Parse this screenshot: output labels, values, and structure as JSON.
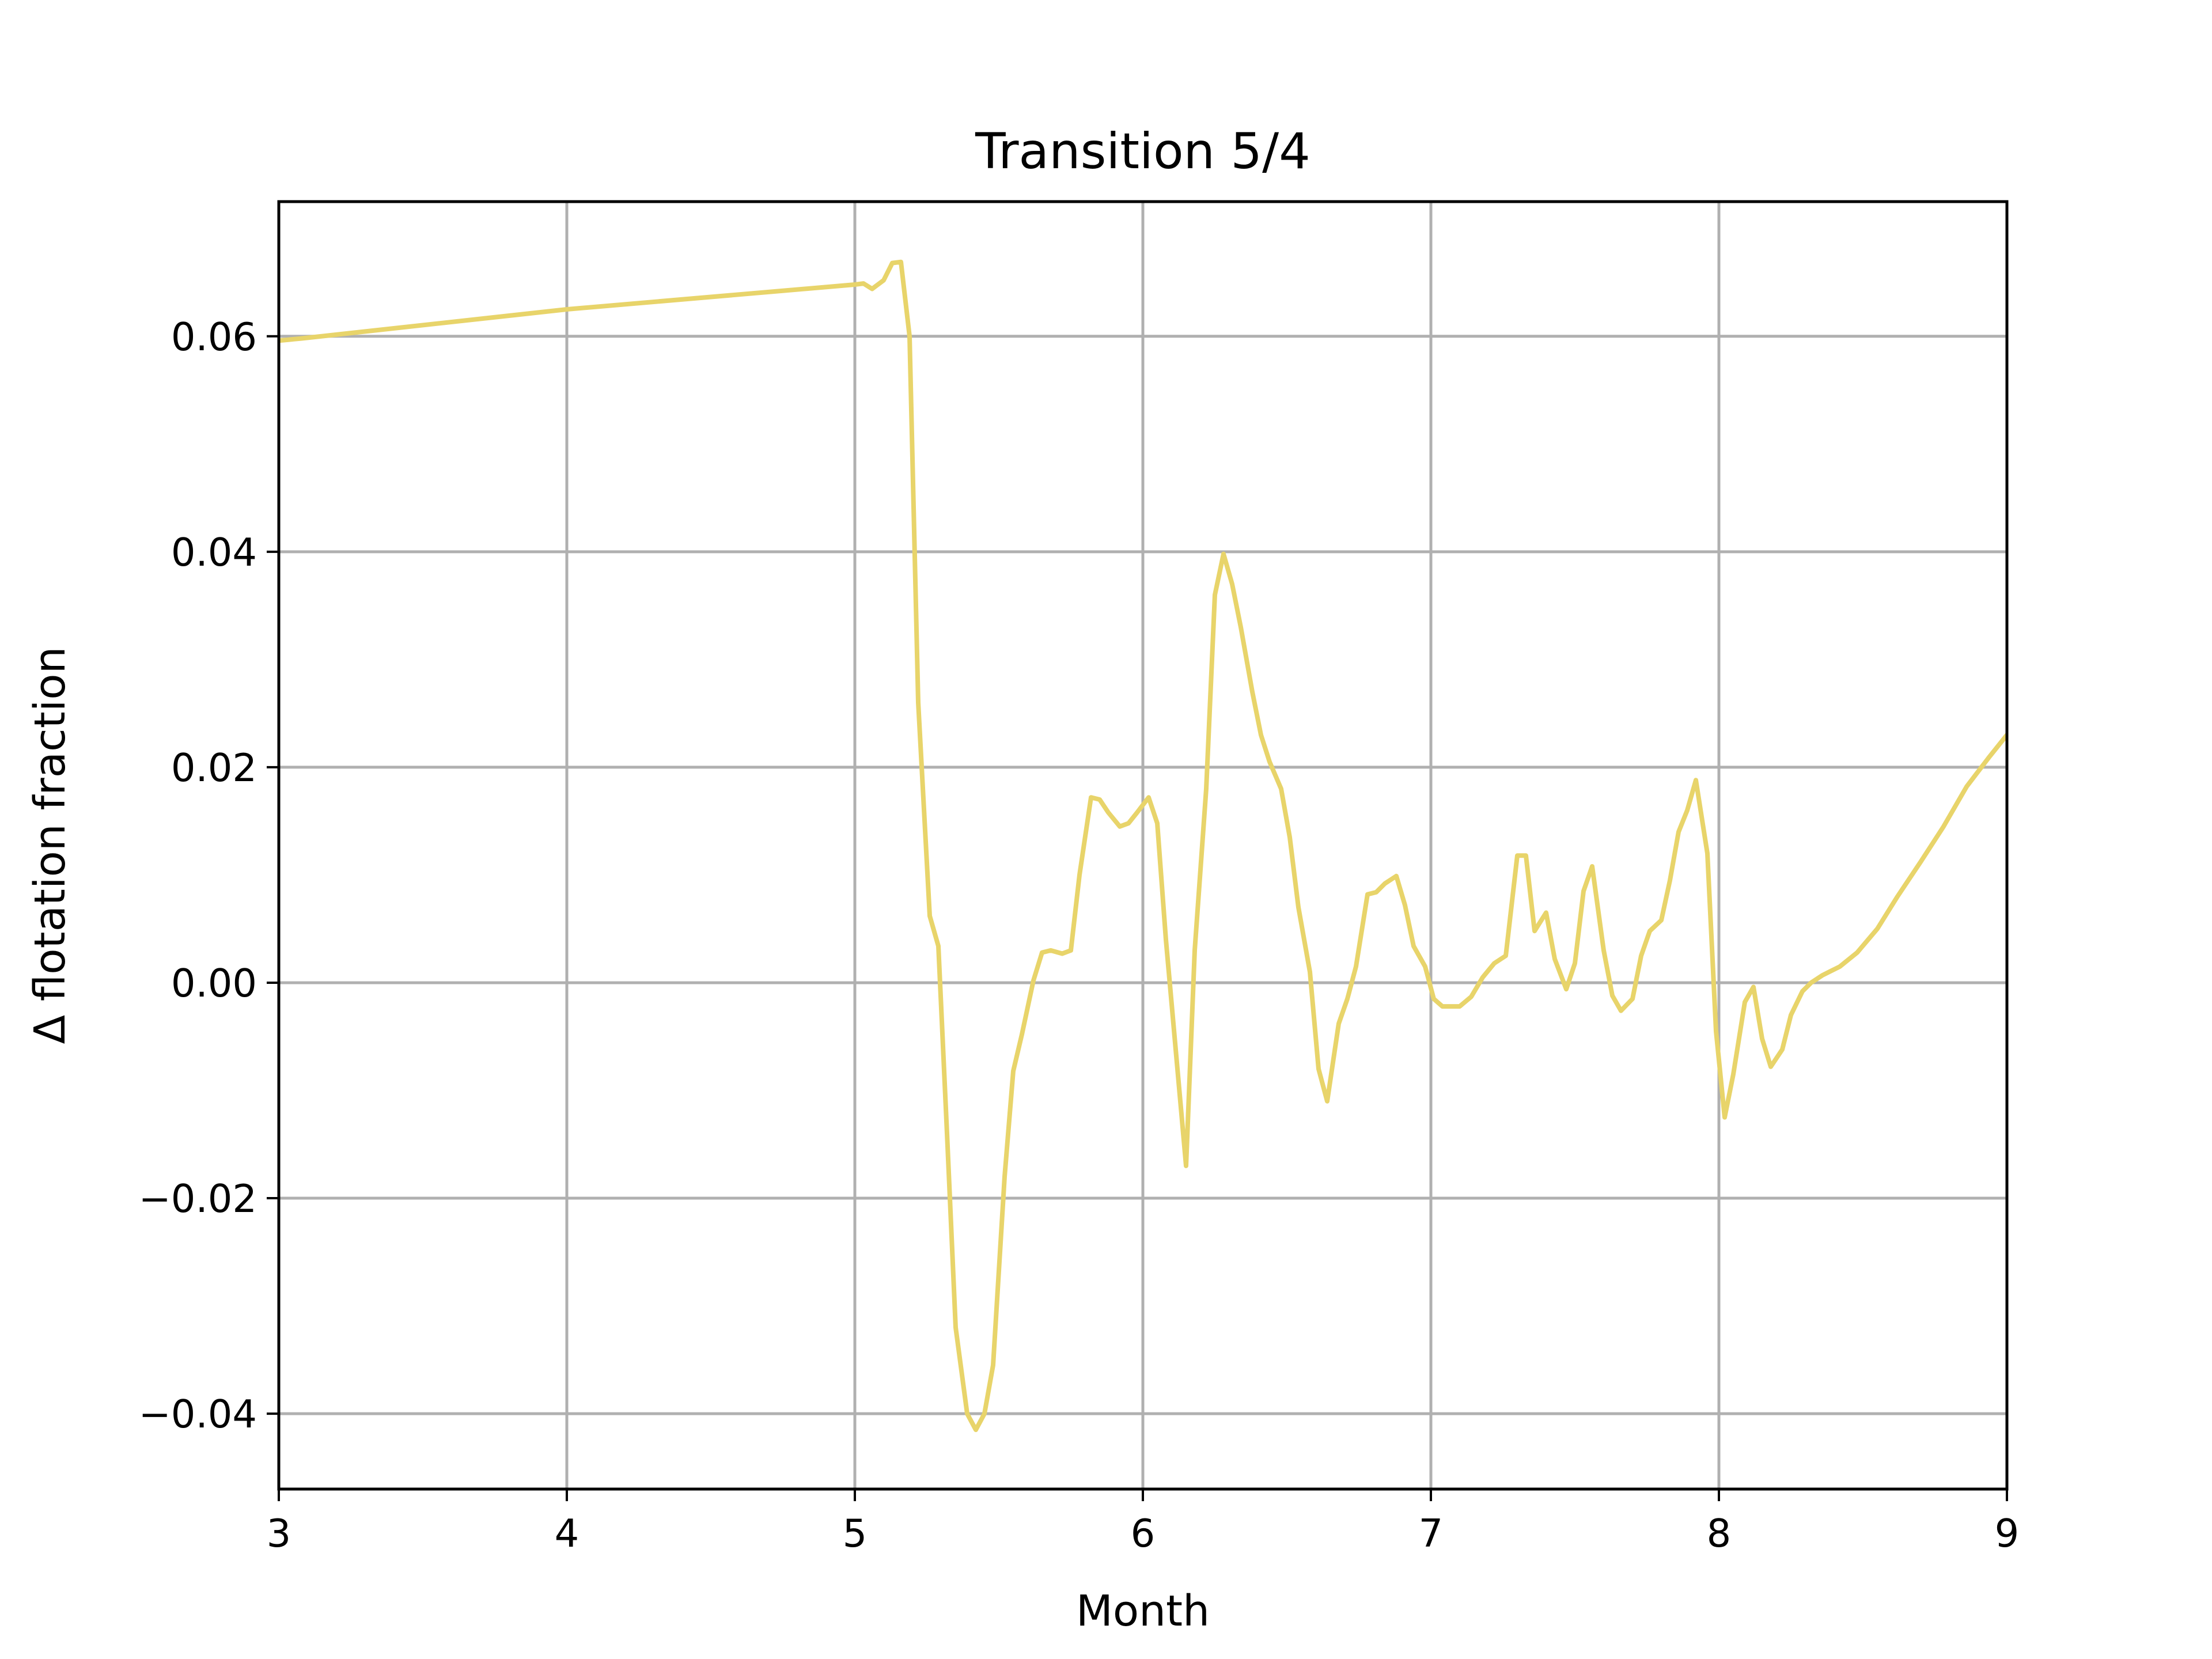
{
  "chart_data": {
    "type": "line",
    "title": "Transition 5/4",
    "xlabel": "Month",
    "ylabel": "Δ flotation fraction",
    "xlim": [
      3,
      9
    ],
    "ylim": [
      -0.047,
      0.0725
    ],
    "grid": true,
    "x_ticks": [
      {
        "value": 3,
        "label": "3"
      },
      {
        "value": 4,
        "label": "4"
      },
      {
        "value": 5,
        "label": "5"
      },
      {
        "value": 6,
        "label": "6"
      },
      {
        "value": 7,
        "label": "7"
      },
      {
        "value": 8,
        "label": "8"
      },
      {
        "value": 9,
        "label": "9"
      }
    ],
    "y_ticks": [
      {
        "value": -0.04,
        "label": "−0.04"
      },
      {
        "value": -0.02,
        "label": "−0.02"
      },
      {
        "value": 0.0,
        "label": "0.00"
      },
      {
        "value": 0.02,
        "label": "0.02"
      },
      {
        "value": 0.04,
        "label": "0.04"
      },
      {
        "value": 0.06,
        "label": "0.06"
      }
    ],
    "series": [
      {
        "color": "#e8d46a",
        "x": [
          3.0,
          3.08,
          4.0,
          5.0,
          5.03,
          5.06,
          5.1,
          5.13,
          5.16,
          5.19,
          5.22,
          5.26,
          5.29,
          5.32,
          5.35,
          5.39,
          5.42,
          5.45,
          5.48,
          5.52,
          5.55,
          5.58,
          5.62,
          5.65,
          5.68,
          5.72,
          5.75,
          5.78,
          5.82,
          5.85,
          5.88,
          5.92,
          5.95,
          5.98,
          6.02,
          6.05,
          6.08,
          6.12,
          6.15,
          6.18,
          6.22,
          6.25,
          6.28,
          6.31,
          6.34,
          6.38,
          6.41,
          6.44,
          6.48,
          6.51,
          6.54,
          6.58,
          6.61,
          6.64,
          6.68,
          6.71,
          6.74,
          6.78,
          6.81,
          6.84,
          6.88,
          6.91,
          6.94,
          6.98,
          7.01,
          7.04,
          7.1,
          7.14,
          7.18,
          7.22,
          7.26,
          7.3,
          7.33,
          7.36,
          7.4,
          7.43,
          7.47,
          7.5,
          7.53,
          7.56,
          7.6,
          7.63,
          7.66,
          7.7,
          7.73,
          7.76,
          7.8,
          7.83,
          7.86,
          7.89,
          7.92,
          7.96,
          7.99,
          8.02,
          8.05,
          8.09,
          8.12,
          8.15,
          8.18,
          8.22,
          8.25,
          8.29,
          8.32,
          8.36,
          8.42,
          8.48,
          8.55,
          8.62,
          8.7,
          8.78,
          8.86,
          8.94,
          9.0
        ],
        "y": [
          0.0596,
          0.0598,
          0.0625,
          0.0648,
          0.0649,
          0.0644,
          0.0652,
          0.0668,
          0.0669,
          0.06,
          0.026,
          0.0062,
          0.0034,
          -0.014,
          -0.032,
          -0.04,
          -0.0415,
          -0.04,
          -0.0355,
          -0.018,
          -0.0082,
          -0.0048,
          0.0002,
          0.0028,
          0.003,
          0.0027,
          0.003,
          0.01,
          0.0172,
          0.017,
          0.0158,
          0.0145,
          0.0148,
          0.0158,
          0.0172,
          0.0148,
          0.004,
          -0.008,
          -0.017,
          0.003,
          0.018,
          0.036,
          0.0398,
          0.037,
          0.033,
          0.027,
          0.023,
          0.0205,
          0.018,
          0.0135,
          0.007,
          0.001,
          -0.008,
          -0.011,
          -0.0038,
          -0.0015,
          0.0015,
          0.0082,
          0.0084,
          0.0092,
          0.0099,
          0.0072,
          0.0034,
          0.0015,
          -0.0015,
          -0.0022,
          -0.0022,
          -0.0013,
          0.0005,
          0.0018,
          0.0025,
          0.0118,
          0.0118,
          0.0048,
          0.0065,
          0.0022,
          -0.0006,
          0.0018,
          0.0085,
          0.0108,
          0.003,
          -0.0012,
          -0.0026,
          -0.0015,
          0.0025,
          0.0048,
          0.0058,
          0.0095,
          0.014,
          0.016,
          0.0188,
          0.012,
          -0.0045,
          -0.0125,
          -0.0085,
          -0.0018,
          -0.0004,
          -0.0052,
          -0.0078,
          -0.0062,
          -0.003,
          -0.0008,
          0.0,
          0.0007,
          0.0015,
          0.0028,
          0.005,
          0.008,
          0.0112,
          0.0145,
          0.0182,
          0.021,
          0.023
        ]
      }
    ]
  }
}
